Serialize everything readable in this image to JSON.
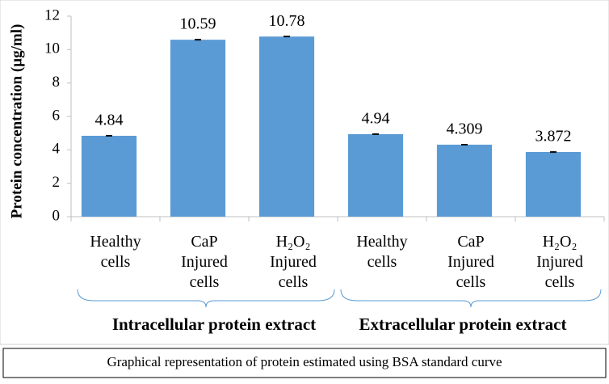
{
  "chart_data": {
    "type": "bar",
    "y_label": "Protein concentration (µg/ml)",
    "categories": [
      "Healthy cells",
      "CaP Injured cells",
      "H₂O₂ Injured cells",
      "Healthy cells",
      "CaP Injured cells",
      "H₂O₂ Injured cells"
    ],
    "values": [
      4.84,
      10.59,
      10.78,
      4.94,
      4.309,
      3.872
    ],
    "errors": [
      0.02,
      0.03,
      0.02,
      0.02,
      0.02,
      0.03
    ],
    "color": "#5b9bd5",
    "ylim": [
      0,
      12
    ],
    "yticks": [
      0,
      2,
      4,
      6,
      8,
      10,
      12
    ],
    "grid": false,
    "group_labels": [
      "Intracellular protein extract",
      "Extracellular protein extract"
    ],
    "caption": "Graphical representation of protein estimated using BSA standard curve"
  }
}
